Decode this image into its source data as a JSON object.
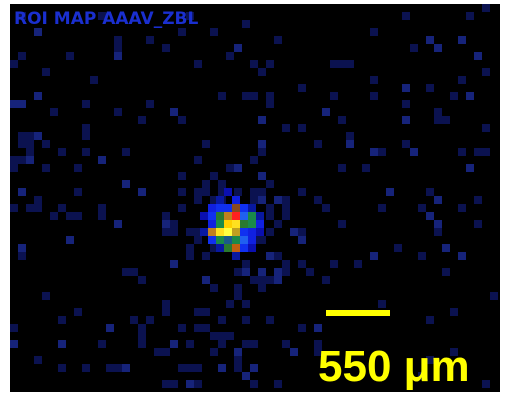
{
  "image": {
    "title": "ROI MAP AAAV_ZBL",
    "scale_label": "550 μm"
  }
}
